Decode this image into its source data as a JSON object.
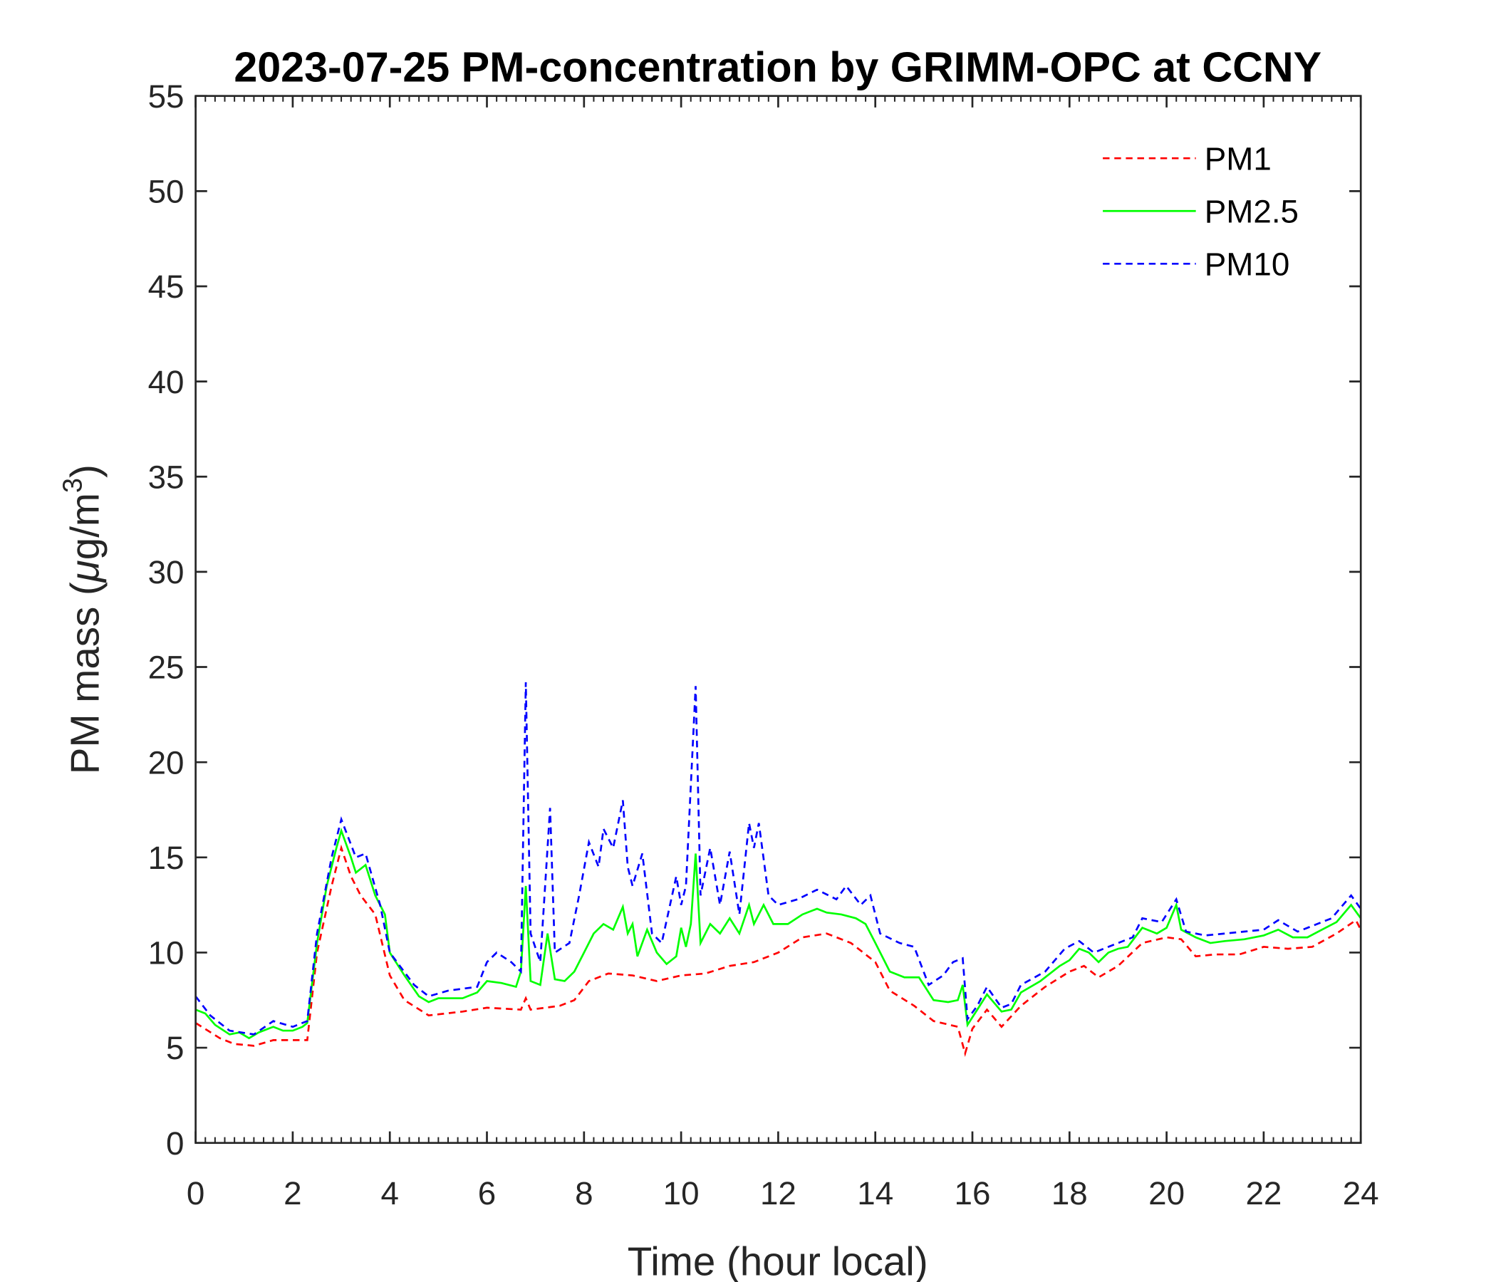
{
  "chart_data": {
    "type": "line",
    "title": "2023-07-25 PM-concentration by GRIMM-OPC at CCNY",
    "xlabel": "Time (hour local)",
    "ylabel_prefix": "PM mass (",
    "ylabel_mu": "μ",
    "ylabel_unit": "g/m",
    "ylabel_sup": "3",
    "ylabel_suffix": ")",
    "xlim": [
      0,
      24
    ],
    "ylim": [
      0,
      55
    ],
    "xticks": [
      0,
      2,
      4,
      6,
      8,
      10,
      12,
      14,
      16,
      18,
      20,
      22,
      24
    ],
    "yticks": [
      0,
      5,
      10,
      15,
      20,
      25,
      30,
      35,
      40,
      45,
      50,
      55
    ],
    "grid": false,
    "legend_position": "top-right",
    "series": [
      {
        "name": "PM1",
        "color": "#ff0000",
        "style": "dashed",
        "x": [
          0,
          0.5,
          0.8,
          1.2,
          1.6,
          2.0,
          2.3,
          2.5,
          2.8,
          3.0,
          3.2,
          3.4,
          3.7,
          4.0,
          4.3,
          4.8,
          5.5,
          6.0,
          6.7,
          6.8,
          6.9,
          7.5,
          7.8,
          8.1,
          8.5,
          9.0,
          9.5,
          10.0,
          10.5,
          11.0,
          11.5,
          12.0,
          12.5,
          13.0,
          13.5,
          14.0,
          14.3,
          14.8,
          15.2,
          15.7,
          15.85,
          16.0,
          16.3,
          16.6,
          17.0,
          17.5,
          18.0,
          18.3,
          18.6,
          19.0,
          19.5,
          20.0,
          20.3,
          20.6,
          21.0,
          21.5,
          22.0,
          22.5,
          23.0,
          23.5,
          23.9,
          24
        ],
        "y": [
          6.3,
          5.5,
          5.2,
          5.1,
          5.4,
          5.4,
          5.4,
          10,
          13.5,
          15.5,
          14,
          13,
          12,
          8.8,
          7.5,
          6.7,
          6.9,
          7.1,
          7.0,
          7.6,
          7.0,
          7.2,
          7.5,
          8.5,
          8.9,
          8.8,
          8.5,
          8.8,
          8.9,
          9.3,
          9.5,
          10.0,
          10.8,
          11.0,
          10.5,
          9.5,
          8.0,
          7.2,
          6.4,
          6.1,
          4.7,
          6.0,
          7.0,
          6.1,
          7.2,
          8.2,
          9.0,
          9.3,
          8.7,
          9.3,
          10.5,
          10.8,
          10.7,
          9.8,
          9.9,
          9.9,
          10.3,
          10.2,
          10.3,
          11.0,
          11.7,
          11.2
        ]
      },
      {
        "name": "PM2.5",
        "color": "#00ff00",
        "style": "solid",
        "x": [
          0,
          0.2,
          0.4,
          0.7,
          0.9,
          1.1,
          1.3,
          1.6,
          1.8,
          2.0,
          2.2,
          2.3,
          2.5,
          2.7,
          2.9,
          3.0,
          3.2,
          3.3,
          3.5,
          3.7,
          3.9,
          4.0,
          4.3,
          4.6,
          4.8,
          5.0,
          5.5,
          5.8,
          6.0,
          6.3,
          6.6,
          6.7,
          6.8,
          6.9,
          7.1,
          7.25,
          7.4,
          7.6,
          7.8,
          8.0,
          8.2,
          8.4,
          8.6,
          8.8,
          8.9,
          9.0,
          9.1,
          9.3,
          9.5,
          9.7,
          9.9,
          10.0,
          10.1,
          10.2,
          10.3,
          10.4,
          10.6,
          10.8,
          11.0,
          11.2,
          11.4,
          11.5,
          11.7,
          11.9,
          12.2,
          12.5,
          12.8,
          13.0,
          13.3,
          13.6,
          13.8,
          14.0,
          14.3,
          14.6,
          14.9,
          15.2,
          15.5,
          15.7,
          15.8,
          15.9,
          16.1,
          16.3,
          16.6,
          16.8,
          17.0,
          17.4,
          17.8,
          18.0,
          18.2,
          18.4,
          18.6,
          18.8,
          19.0,
          19.2,
          19.5,
          19.8,
          20.0,
          20.2,
          20.3,
          20.6,
          20.9,
          21.2,
          21.6,
          22.0,
          22.3,
          22.6,
          22.9,
          23.2,
          23.5,
          23.8,
          24
        ],
        "y": [
          7.0,
          6.8,
          6.2,
          5.7,
          5.8,
          5.5,
          5.8,
          6.1,
          5.9,
          5.9,
          6.1,
          6.3,
          10.5,
          13.5,
          15.5,
          16.4,
          15.0,
          14.2,
          14.6,
          13.0,
          12.0,
          10.0,
          8.8,
          7.7,
          7.4,
          7.6,
          7.6,
          7.9,
          8.5,
          8.4,
          8.2,
          9.0,
          13.5,
          8.5,
          8.3,
          11.0,
          8.6,
          8.5,
          9.0,
          10.0,
          11.0,
          11.5,
          11.2,
          12.4,
          11.0,
          11.5,
          9.8,
          11.2,
          10.0,
          9.4,
          9.8,
          11.3,
          10.3,
          11.5,
          15.2,
          10.5,
          11.5,
          11.0,
          11.8,
          11.0,
          12.5,
          11.5,
          12.5,
          11.5,
          11.5,
          12.0,
          12.3,
          12.1,
          12.0,
          11.8,
          11.5,
          10.5,
          9.0,
          8.7,
          8.7,
          7.5,
          7.4,
          7.5,
          8.3,
          6.2,
          7.0,
          7.8,
          6.9,
          7.0,
          7.9,
          8.5,
          9.3,
          9.6,
          10.2,
          10.0,
          9.5,
          10.0,
          10.2,
          10.3,
          11.3,
          11.0,
          11.3,
          12.5,
          11.2,
          10.8,
          10.5,
          10.6,
          10.7,
          10.9,
          11.2,
          10.8,
          10.8,
          11.2,
          11.6,
          12.5,
          11.8
        ]
      },
      {
        "name": "PM10",
        "color": "#0000ff",
        "style": "dashed",
        "x": [
          0,
          0.3,
          0.7,
          1.2,
          1.6,
          2.0,
          2.3,
          2.5,
          2.8,
          3.0,
          3.3,
          3.5,
          3.8,
          4.0,
          4.5,
          4.8,
          5.2,
          5.8,
          6.0,
          6.2,
          6.5,
          6.7,
          6.8,
          6.9,
          7.1,
          7.3,
          7.4,
          7.7,
          7.9,
          8.1,
          8.3,
          8.4,
          8.6,
          8.8,
          8.9,
          9.0,
          9.2,
          9.4,
          9.6,
          9.9,
          10.0,
          10.1,
          10.3,
          10.4,
          10.6,
          10.8,
          11.0,
          11.2,
          11.4,
          11.5,
          11.6,
          11.8,
          12.0,
          12.4,
          12.8,
          13.2,
          13.4,
          13.7,
          13.9,
          14.1,
          14.5,
          14.8,
          15.1,
          15.4,
          15.6,
          15.8,
          15.9,
          16.1,
          16.3,
          16.6,
          16.8,
          17.0,
          17.5,
          17.9,
          18.2,
          18.5,
          18.9,
          19.3,
          19.5,
          19.9,
          20.2,
          20.4,
          20.8,
          21.2,
          21.6,
          22.0,
          22.3,
          22.7,
          23.0,
          23.4,
          23.8,
          24
        ],
        "y": [
          7.7,
          6.7,
          5.9,
          5.7,
          6.4,
          6.1,
          6.4,
          11,
          15,
          17,
          15,
          15.2,
          12.5,
          10,
          8.3,
          7.7,
          8.0,
          8.2,
          9.5,
          10,
          9.5,
          9,
          24.2,
          11,
          9.5,
          17.6,
          10,
          10.5,
          13,
          15.8,
          14.5,
          16.5,
          15.5,
          18,
          14.5,
          13.5,
          15.2,
          11,
          10.5,
          14,
          12.5,
          13.5,
          24,
          13,
          15.5,
          12.5,
          15.3,
          12,
          16.8,
          15.5,
          16.8,
          13,
          12.5,
          12.8,
          13.3,
          12.8,
          13.5,
          12.5,
          13,
          11,
          10.5,
          10.3,
          8.3,
          8.8,
          9.5,
          9.7,
          6.5,
          7.2,
          8.2,
          7.1,
          7.3,
          8.3,
          9.0,
          10.2,
          10.6,
          10.0,
          10.4,
          10.8,
          11.8,
          11.6,
          12.8,
          11.1,
          10.9,
          11.0,
          11.1,
          11.2,
          11.7,
          11.1,
          11.4,
          11.8,
          13.0,
          12.3
        ]
      }
    ]
  }
}
